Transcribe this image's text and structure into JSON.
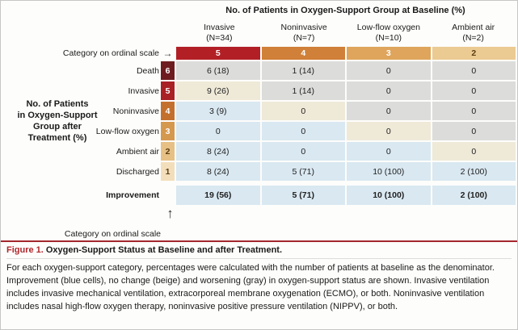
{
  "figure": {
    "top_header": "No. of Patients in Oxygen-Support Group at Baseline (%)",
    "columns": [
      {
        "name": "Invasive",
        "n": "(N=34)",
        "baseline": {
          "value": "5",
          "bg": "#b22026",
          "fg": "#ffffff"
        }
      },
      {
        "name": "Noninvasive",
        "n": "(N=7)",
        "baseline": {
          "value": "4",
          "bg": "#d08038",
          "fg": "#ffffff"
        }
      },
      {
        "name": "Low-flow oxygen",
        "n": "(N=10)",
        "baseline": {
          "value": "3",
          "bg": "#dfa55c",
          "fg": "#ffffff"
        }
      },
      {
        "name": "Ambient air",
        "n": "(N=2)",
        "baseline": {
          "value": "2",
          "bg": "#eccb92",
          "fg": "#5a3d12"
        }
      }
    ],
    "baseline_axis_label": "Category on ordinal scale",
    "baseline_axis_arrow": "→",
    "left_label": "No. of Patients\nin Oxygen-Support\nGroup after\nTreatment (%)",
    "rows": [
      {
        "label": "Death",
        "ordinal": {
          "value": "6",
          "bg": "#6e1c20",
          "fg": "#ffffff"
        },
        "cells": [
          {
            "text": "6 (18)",
            "status": "gray"
          },
          {
            "text": "1 (14)",
            "status": "gray"
          },
          {
            "text": "0",
            "status": "gray"
          },
          {
            "text": "0",
            "status": "gray"
          }
        ]
      },
      {
        "label": "Invasive",
        "ordinal": {
          "value": "5",
          "bg": "#a92025",
          "fg": "#ffffff"
        },
        "cells": [
          {
            "text": "9 (26)",
            "status": "beige"
          },
          {
            "text": "1 (14)",
            "status": "gray"
          },
          {
            "text": "0",
            "status": "gray"
          },
          {
            "text": "0",
            "status": "gray"
          }
        ]
      },
      {
        "label": "Noninvasive",
        "ordinal": {
          "value": "4",
          "bg": "#c3702f",
          "fg": "#ffffff"
        },
        "cells": [
          {
            "text": "3 (9)",
            "status": "blue"
          },
          {
            "text": "0",
            "status": "beige"
          },
          {
            "text": "0",
            "status": "gray"
          },
          {
            "text": "0",
            "status": "gray"
          }
        ]
      },
      {
        "label": "Low-flow oxygen",
        "ordinal": {
          "value": "3",
          "bg": "#d5984f",
          "fg": "#ffffff"
        },
        "cells": [
          {
            "text": "0",
            "status": "blue"
          },
          {
            "text": "0",
            "status": "blue"
          },
          {
            "text": "0",
            "status": "beige"
          },
          {
            "text": "0",
            "status": "gray"
          }
        ]
      },
      {
        "label": "Ambient air",
        "ordinal": {
          "value": "2",
          "bg": "#e6c084",
          "fg": "#5a3d12"
        },
        "cells": [
          {
            "text": "8 (24)",
            "status": "blue"
          },
          {
            "text": "0",
            "status": "blue"
          },
          {
            "text": "0",
            "status": "blue"
          },
          {
            "text": "0",
            "status": "beige"
          }
        ]
      },
      {
        "label": "Discharged",
        "ordinal": {
          "value": "1",
          "bg": "#f3debb",
          "fg": "#5a3d12"
        },
        "cells": [
          {
            "text": "8 (24)",
            "status": "blue"
          },
          {
            "text": "5 (71)",
            "status": "blue"
          },
          {
            "text": "10 (100)",
            "status": "blue"
          },
          {
            "text": "2 (100)",
            "status": "blue"
          }
        ]
      }
    ],
    "improvement": {
      "label": "Improvement",
      "cells": [
        {
          "text": "19 (56)",
          "status": "blue"
        },
        {
          "text": "5 (71)",
          "status": "blue"
        },
        {
          "text": "10 (100)",
          "status": "blue"
        },
        {
          "text": "2 (100)",
          "status": "blue"
        }
      ]
    },
    "bottom_axis_label": "Category on ordinal scale",
    "bottom_axis_arrow": "↑"
  },
  "legend_colors": {
    "improvement_blue": "#d9e8f1",
    "no_change_beige": "#efe9d8",
    "worsening_gray": "#dcdcda"
  },
  "caption": {
    "figure_label": "Figure 1.",
    "title": "Oxygen-Support Status at Baseline and after Treatment.",
    "label_color": "#b0272b",
    "rule_color": "#a3282d",
    "body": "For each oxygen-support category, percentages were calculated with the number of patients at baseline as the denominator. Improvement (blue cells), no change (beige) and worsening (gray) in oxygen-support status are shown. Invasive ventilation includes invasive mechanical ventilation, extracorporeal membrane oxygenation (ECMO), or both. Noninvasive ventilation includes nasal high-flow oxygen therapy, noninvasive positive pressure ventilation (NIPPV), or both."
  }
}
